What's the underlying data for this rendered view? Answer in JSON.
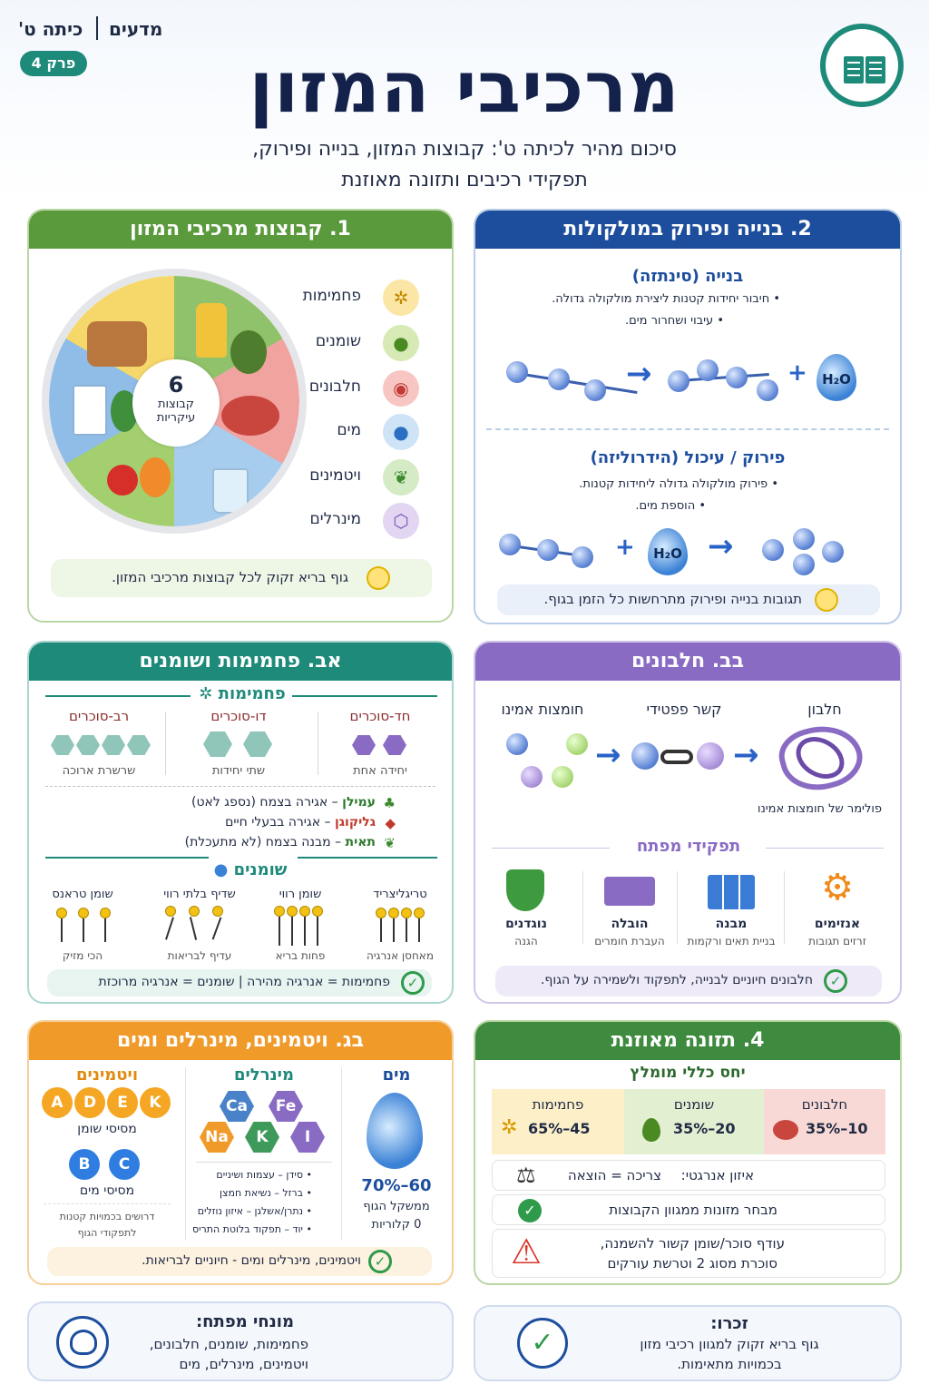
{
  "header": {
    "subject": "מדעים",
    "grade": "כיתה ט'",
    "chapter": "פרק 4",
    "title": "מרכיבי המזון",
    "subtitle_line1": "סיכום מהיר לכיתה ט': קבוצות המזון, בנייה ופירוק,",
    "subtitle_line2": "תפקידי רכיבים ותזונה מאוזנת",
    "icon": "open-book-icon"
  },
  "colors": {
    "green": "#5a9a3c",
    "blue": "#1d4e9e",
    "teal": "#1e8a7a",
    "purple": "#8a6bc4",
    "orange": "#f09a2a",
    "darkgreen": "#3e8a3e"
  },
  "groups": {
    "heading": "1. קבוצות מרכיבי המזון",
    "center_number": "6",
    "center_label1": "קבוצות",
    "center_label2": "עיקריות",
    "items": [
      {
        "label": "פחמימות",
        "icon": "wheat-icon"
      },
      {
        "label": "שומנים",
        "icon": "oil-drop-icon"
      },
      {
        "label": "חלבונים",
        "icon": "meat-icon"
      },
      {
        "label": "מים",
        "icon": "water-drop-icon"
      },
      {
        "label": "ויטמינים",
        "icon": "leaf-icon"
      },
      {
        "label": "מינרלים",
        "icon": "molecule-icon"
      }
    ],
    "note": "גוף בריא זקוק לכל קבוצות מרכיבי המזון."
  },
  "building": {
    "heading": "2. בנייה ופירוק במולקולות",
    "synth_title": "בנייה (סינתזה)",
    "synth_b1": "חיבור יחידות קטנות ליצירת מולקולה גדולה.",
    "synth_b2": "עיבוי ושחרור מים.",
    "hydro_title": "פירוק / עיכול (הידרוליזה)",
    "hydro_b1": "פירוק מולקולה גדולה ליחידות קטנות.",
    "hydro_b2": "הוספת מים.",
    "water": "H₂O",
    "note": "תגובות בנייה ופירוק מתרחשות כל הזמן בגוף."
  },
  "carbs": {
    "heading": "אב. פחמימות ושומנים",
    "carbs_title": "פחמימות",
    "mono": "חד-סוכרים",
    "mono_desc": "יחידה אחת",
    "di": "דו-סוכרים",
    "di_desc": "שתי יחידות",
    "poly": "רב-סוכרים",
    "poly_desc": "שרשרת ארוכה",
    "starch_name": "עמילן",
    "starch_desc": "– אגירה בצמח (נספג לאט)",
    "glyco_name": "גליקוגן",
    "glyco_desc": "– אגירה בבעלי חיים",
    "cell_name": "תאית",
    "cell_desc": "– מבנה בצמח (לא מתעכלת)",
    "fats_title": "שומנים",
    "fats": [
      {
        "name": "טריגליצריד",
        "desc": "מאחסן אנרגיה"
      },
      {
        "name": "שומן רווי",
        "desc": "פחות בריא"
      },
      {
        "name": "שדיף בלתי רווי",
        "desc": "עדיף לבריאות"
      },
      {
        "name": "שומן טראנס",
        "desc": "הכי מזיק"
      }
    ],
    "note": "פחמימות = אנרגיה מהירה | שומנים = אנרגיה מרוכזת"
  },
  "protein": {
    "heading": "בב. חלבונים",
    "protein": "חלבון",
    "peptide": "קשר פפטידי",
    "amino": "חומצות אמינו",
    "polymer": "פולימר של חומצות אמינו",
    "roles_title": "תפקידי מפתח",
    "roles": [
      {
        "name": "אנזימים",
        "desc": "זרזים תגובות",
        "icon": "gear-icon"
      },
      {
        "name": "מבנה",
        "desc": "בניית תאים ורקמות",
        "icon": "bricks-icon"
      },
      {
        "name": "הובלה",
        "desc": "העברת חומרים",
        "icon": "truck-icon"
      },
      {
        "name": "נוגדנים",
        "desc": "הגנה",
        "icon": "shield-icon"
      }
    ],
    "note": "חלבונים חיוניים לבנייה, לתפקוד ולשמירה על הגוף."
  },
  "vitamins": {
    "heading": "בג. ויטמינים, מינרלים ומים",
    "water_title": "מים",
    "water_pct": "60–70%",
    "water_desc": "ממשקל הגוף",
    "water_cal": "0 קלוריות",
    "minerals_title": "מינרלים",
    "minerals": [
      "Ca",
      "Fe",
      "Na",
      "K",
      "I"
    ],
    "mineral_list": [
      "סידן – עצמות ושיניים",
      "ברזל – נשיאת חמצן",
      "נתרן/אשלגן – איזון נוזלים",
      "יוד – תפקוד בלוטת התריס"
    ],
    "vit_title": "ויטמינים",
    "fat_soluble": [
      "A",
      "D",
      "E",
      "K"
    ],
    "fat_soluble_label": "מסיסי שומן",
    "water_soluble": [
      "B",
      "C"
    ],
    "water_soluble_label": "מסיסי מים",
    "vit_note1": "דרושים בכמויות קטנות",
    "vit_note2": "לתפקודי הגוף",
    "note": "ויטמינים, מינרלים ומים - חיוניים לבריאות."
  },
  "balance": {
    "heading": "4. תזונה מאוזנת",
    "ratio_title": "יחס כללי מומלץ",
    "ratios": [
      {
        "name": "חלבונים",
        "value": "10–35%",
        "icon": "meat-icon"
      },
      {
        "name": "שומנים",
        "value": "20–35%",
        "icon": "oil-drop-icon"
      },
      {
        "name": "פחמימות",
        "value": "45–65%",
        "icon": "wheat-icon"
      }
    ],
    "energy_label": "איזון אנרגטי:",
    "energy_value": "צריכה = הוצאה",
    "variety": "מבחר מזונות ממגוון הקבוצות",
    "warn_line1": "עודף סוכר/שומן קשור להשמנה,",
    "warn_line2": "סוכרת מסוג 2 וטרשת עורקים"
  },
  "footer": {
    "terms_title": "מונחי מפתח:",
    "terms_line1": "פחמימות, שומנים, חלבונים,",
    "terms_line2": "ויטמינים, מינרלים, מים",
    "remember_title": "זכרו:",
    "remember_line1": "גוף בריא זקוק למגוון רכיבי מזון",
    "remember_line2": "בכמויות מתאימות."
  }
}
